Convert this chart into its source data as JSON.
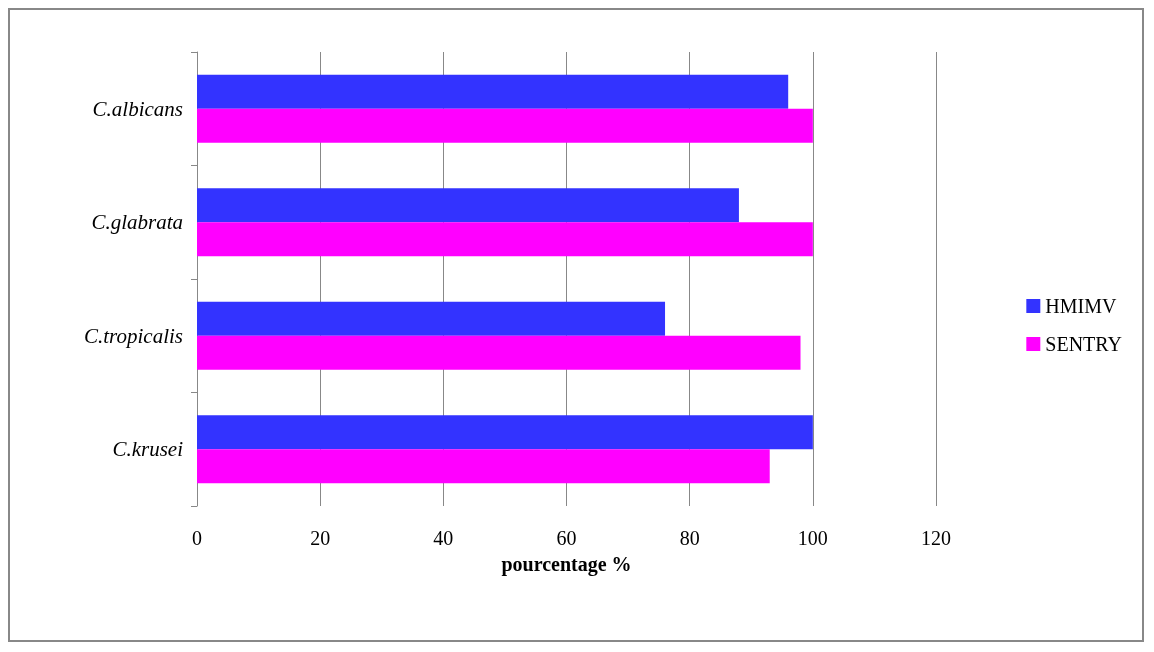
{
  "chart_data": {
    "type": "bar",
    "orientation": "horizontal",
    "xlabel": "pourcentage %",
    "categories": [
      "C.albicans",
      "C.glabrata",
      "C.tropicalis",
      "C.krusei"
    ],
    "series": [
      {
        "name": "HMIMV",
        "color": "#3333ff",
        "values": [
          96,
          88,
          76,
          100
        ]
      },
      {
        "name": "SENTRY",
        "color": "#ff00ff",
        "values": [
          100,
          100,
          98,
          93
        ]
      }
    ],
    "xlim": [
      0,
      120
    ],
    "xticks": [
      0,
      20,
      40,
      60,
      80,
      100,
      120
    ],
    "grid": "x",
    "legend": "right"
  }
}
